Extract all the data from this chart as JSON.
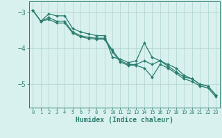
{
  "xlabel": "Humidex (Indice chaleur)",
  "x": [
    0,
    1,
    2,
    3,
    4,
    5,
    6,
    7,
    8,
    9,
    10,
    11,
    12,
    13,
    14,
    15,
    16,
    17,
    18,
    19,
    20,
    21,
    22,
    23
  ],
  "line1": [
    -2.95,
    -3.25,
    -3.05,
    -3.1,
    -3.1,
    -3.45,
    -3.55,
    -3.6,
    -3.65,
    -3.65,
    -4.25,
    -4.3,
    -4.4,
    -4.35,
    -3.85,
    -4.25,
    -4.35,
    -4.45,
    -4.55,
    -4.75,
    -4.85,
    -5.0,
    -5.05,
    -5.3
  ],
  "line2": [
    -2.95,
    -3.25,
    -3.15,
    -3.25,
    -3.25,
    -3.55,
    -3.65,
    -3.7,
    -3.72,
    -3.72,
    -4.05,
    -4.35,
    -4.45,
    -4.45,
    -4.35,
    -4.45,
    -4.35,
    -4.5,
    -4.65,
    -4.8,
    -4.85,
    -5.0,
    -5.05,
    -5.3
  ],
  "line3": [
    -2.95,
    -3.25,
    -3.2,
    -3.3,
    -3.3,
    -3.58,
    -3.68,
    -3.73,
    -3.75,
    -3.75,
    -4.1,
    -4.38,
    -4.48,
    -4.48,
    -4.55,
    -4.8,
    -4.45,
    -4.55,
    -4.7,
    -4.85,
    -4.92,
    -5.05,
    -5.1,
    -5.35
  ],
  "bg_color": "#d8f0ee",
  "grid_color": "#aed4cf",
  "line_color": "#2a7d6e",
  "marker": "D",
  "marker_size": 2.0,
  "line_width": 0.9,
  "yticks": [
    -3,
    -4,
    -5
  ],
  "ylim": [
    -5.65,
    -2.7
  ],
  "xlim": [
    -0.5,
    23.5
  ],
  "xlabel_fontsize": 7,
  "ytick_fontsize": 7,
  "xtick_fontsize": 5,
  "axis_color": "#2a7d6e",
  "spine_color": "#2a7d6e"
}
